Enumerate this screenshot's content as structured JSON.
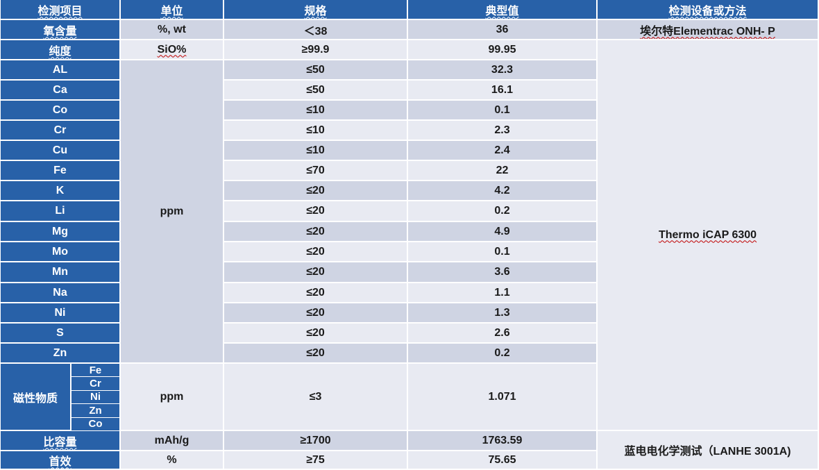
{
  "table": {
    "headers": [
      "检测项目",
      "单位",
      "规格",
      "典型值",
      "检测设备或方法"
    ],
    "rows_top": [
      {
        "item": "氧含量",
        "unit": "%, wt",
        "spec": "＜38",
        "value": "36",
        "method": "埃尔特Elementrac ONH- P"
      },
      {
        "item": "纯度",
        "unit": "SiO%",
        "spec": "≥99.9",
        "value": "99.95"
      }
    ],
    "impurity_unit": "ppm",
    "impurities": [
      {
        "item": "AL",
        "spec": "≤50",
        "value": "32.3"
      },
      {
        "item": "Ca",
        "spec": "≤50",
        "value": "16.1"
      },
      {
        "item": "Co",
        "spec": "≤10",
        "value": "0.1"
      },
      {
        "item": "Cr",
        "spec": "≤10",
        "value": "2.3"
      },
      {
        "item": "Cu",
        "spec": "≤10",
        "value": "2.4"
      },
      {
        "item": "Fe",
        "spec": "≤70",
        "value": "22"
      },
      {
        "item": "K",
        "spec": "≤20",
        "value": "4.2"
      },
      {
        "item": "Li",
        "spec": "≤20",
        "value": "0.2"
      },
      {
        "item": "Mg",
        "spec": "≤20",
        "value": "4.9"
      },
      {
        "item": "Mo",
        "spec": "≤20",
        "value": "0.1"
      },
      {
        "item": "Mn",
        "spec": "≤20",
        "value": "3.6"
      },
      {
        "item": "Na",
        "spec": "≤20",
        "value": "1.1"
      },
      {
        "item": "Ni",
        "spec": "≤20",
        "value": "1.3"
      },
      {
        "item": "S",
        "spec": "≤20",
        "value": "2.6"
      },
      {
        "item": "Zn",
        "spec": "≤20",
        "value": "0.2"
      }
    ],
    "icp_method": "Thermo iCAP 6300",
    "magnetic": {
      "item": "磁性物质",
      "elements": [
        "Fe",
        "Cr",
        "Ni",
        "Zn",
        "Co"
      ],
      "unit": "ppm",
      "spec": "≤3",
      "value": "1.071"
    },
    "rows_bottom": [
      {
        "item": "比容量",
        "unit": "mAh/g",
        "spec": "≥1700",
        "value": "1763.59"
      },
      {
        "item": "首效",
        "unit": "%",
        "spec": "≥75",
        "value": "75.65"
      }
    ],
    "electro_method": "蓝电电化学测试（LANHE 3001A)"
  },
  "colors": {
    "header_blue": "#2861a8",
    "row_light": "#e8eaf2",
    "row_dark": "#cfd4e3"
  }
}
